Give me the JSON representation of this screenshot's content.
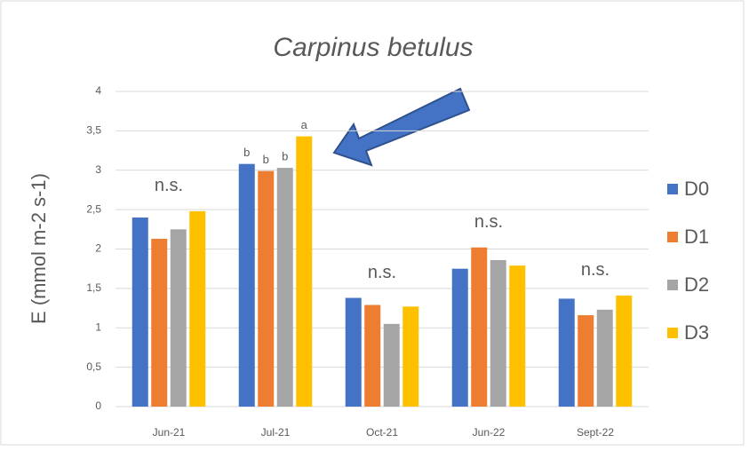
{
  "chart_data": {
    "type": "bar",
    "title": "Carpinus betulus",
    "y_label": "E (mmol m-2 s-1)",
    "categories": [
      "Jun-21",
      "Jul-21",
      "Oct-21",
      "Jun-22",
      "Sept-22"
    ],
    "group_labels": [
      "n.s.",
      null,
      "n.s.",
      "n.s.",
      "n.s."
    ],
    "series": [
      {
        "name": "D0",
        "color": "#4472c4",
        "values": [
          2.4,
          3.08,
          1.38,
          1.75,
          1.37
        ],
        "letters": [
          null,
          "b",
          null,
          null,
          null
        ]
      },
      {
        "name": "D1",
        "color": "#ed7d31",
        "values": [
          2.13,
          2.99,
          1.29,
          2.02,
          1.16
        ],
        "letters": [
          null,
          "b",
          null,
          null,
          null
        ]
      },
      {
        "name": "D2",
        "color": "#a5a5a5",
        "values": [
          2.25,
          3.03,
          1.05,
          1.86,
          1.23
        ],
        "letters": [
          null,
          "b",
          null,
          null,
          null
        ]
      },
      {
        "name": "D3",
        "color": "#ffc000",
        "values": [
          2.48,
          3.43,
          1.27,
          1.79,
          1.41
        ],
        "letters": [
          null,
          "a",
          null,
          null,
          null
        ]
      }
    ],
    "ylim": [
      0,
      4
    ],
    "yticks": [
      0,
      {
        "value": 0.5,
        "label": "0,5"
      },
      1,
      {
        "value": 1.5,
        "label": "1,5"
      },
      2,
      {
        "value": 2.5,
        "label": "2,5"
      },
      3,
      {
        "value": 3.5,
        "label": "3,5"
      },
      4
    ],
    "grid": true,
    "legend": "right"
  }
}
